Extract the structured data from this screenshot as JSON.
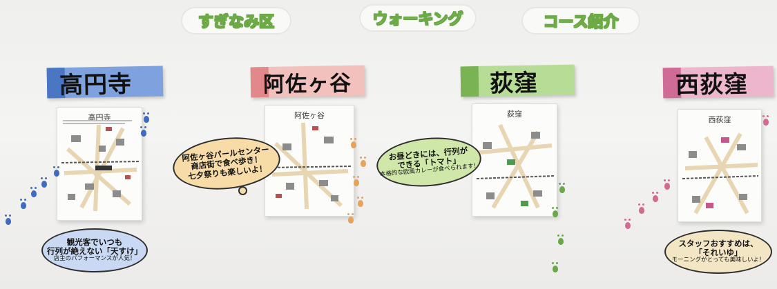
{
  "header": {
    "part1": "すぎなみ区",
    "part2": "ウォーキング",
    "part3": "コース紹介"
  },
  "areas": [
    {
      "name": "高円寺",
      "sheet_title": "高円寺",
      "band_color": "#4a76c4",
      "banner_color": "#7ea2dd",
      "cloud_color": "#c9d9f3",
      "comment": [
        "観光客でいつも",
        "行列が絶えない「天すけ」",
        "店主のパフォーマンスが人気！"
      ],
      "footprint_color": "#3f6cc1"
    },
    {
      "name": "阿佐ヶ谷",
      "sheet_title": "阿佐ヶ谷",
      "band_color": "#e2888a",
      "banner_color": "#f2c1bd",
      "cloud_color": "#f7dca8",
      "comment": [
        "阿佐ヶ谷パールセンター",
        "商店街で食べ歩き！",
        "七夕祭りも楽しいよ！"
      ],
      "footprint_color": "#e8a25c"
    },
    {
      "name": "荻窪",
      "sheet_title": "荻窪",
      "band_color": "#7ab354",
      "banner_color": "#b6dc96",
      "cloud_color": "#cfe7a8",
      "comment": [
        "お昼どきには、行列が",
        "できる「トマト」",
        "本格的な欧風カレーが食べられます！"
      ],
      "footprint_color": "#6aa84b"
    },
    {
      "name": "西荻窪",
      "sheet_title": "西荻窪",
      "band_color": "#cf6c95",
      "banner_color": "#eeb6cc",
      "cloud_color": "#f3e6c5",
      "comment": [
        "スタッフおすすめは、",
        "「それいゆ」",
        "モーニングがとっても美味しいよ！"
      ],
      "footprint_color": "#d46a92"
    }
  ]
}
